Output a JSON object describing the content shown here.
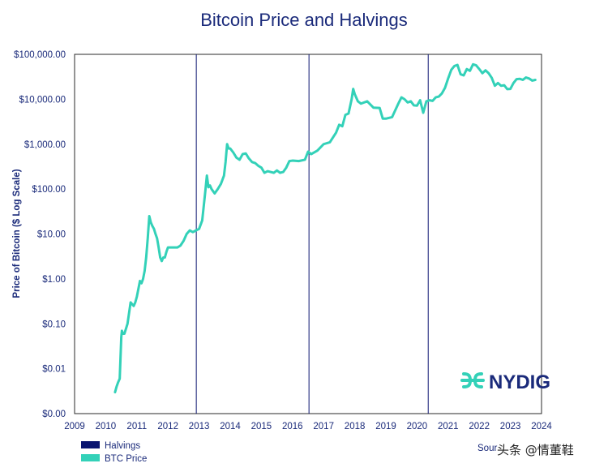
{
  "chart_data": {
    "type": "line",
    "title": "Bitcoin Price and Halvings",
    "ylabel": "Price of Bitcoin ($ Log Scale)",
    "xlabel": "",
    "y_scale": "log",
    "ylim": [
      0.001,
      100000
    ],
    "xlim": [
      2009,
      2024
    ],
    "x_ticks": [
      "2009",
      "2010",
      "2011",
      "2012",
      "2013",
      "2014",
      "2015",
      "2016",
      "2017",
      "2018",
      "2019",
      "2020",
      "2021",
      "2022",
      "2023",
      "2024"
    ],
    "y_ticks": [
      {
        "value": 0.001,
        "label": "$0.00"
      },
      {
        "value": 0.01,
        "label": "$0.01"
      },
      {
        "value": 0.1,
        "label": "$0.10"
      },
      {
        "value": 1,
        "label": "$1.00"
      },
      {
        "value": 10,
        "label": "$10.00"
      },
      {
        "value": 100,
        "label": "$100.00"
      },
      {
        "value": 1000,
        "label": "$1,000.00"
      },
      {
        "value": 10000,
        "label": "$10,000.00"
      },
      {
        "value": 100000,
        "label": "$100,000.00"
      }
    ],
    "grid": false,
    "series": [
      {
        "name": "BTC Price",
        "color": "#33d1b8",
        "x": [
          2010.3,
          2010.35,
          2010.4,
          2010.45,
          2010.5,
          2010.52,
          2010.55,
          2010.6,
          2010.7,
          2010.8,
          2010.9,
          2010.95,
          2011.0,
          2011.1,
          2011.15,
          2011.2,
          2011.25,
          2011.3,
          2011.35,
          2011.4,
          2011.45,
          2011.5,
          2011.55,
          2011.6,
          2011.65,
          2011.7,
          2011.75,
          2011.8,
          2011.85,
          2011.9,
          2011.95,
          2012.0,
          2012.1,
          2012.2,
          2012.3,
          2012.4,
          2012.5,
          2012.6,
          2012.7,
          2012.8,
          2012.9,
          2013.0,
          2013.1,
          2013.2,
          2013.25,
          2013.3,
          2013.35,
          2013.4,
          2013.5,
          2013.6,
          2013.7,
          2013.8,
          2013.85,
          2013.9,
          2013.95,
          2014.0,
          2014.1,
          2014.2,
          2014.3,
          2014.4,
          2014.5,
          2014.6,
          2014.7,
          2014.8,
          2014.9,
          2015.0,
          2015.1,
          2015.2,
          2015.3,
          2015.4,
          2015.5,
          2015.6,
          2015.7,
          2015.8,
          2015.9,
          2016.0,
          2016.2,
          2016.4,
          2016.5,
          2016.6,
          2016.8,
          2017.0,
          2017.2,
          2017.4,
          2017.5,
          2017.6,
          2017.7,
          2017.8,
          2017.9,
          2017.95,
          2018.0,
          2018.1,
          2018.2,
          2018.4,
          2018.6,
          2018.8,
          2018.9,
          2019.0,
          2019.2,
          2019.4,
          2019.5,
          2019.6,
          2019.7,
          2019.8,
          2019.9,
          2020.0,
          2020.1,
          2020.2,
          2020.3,
          2020.4,
          2020.5,
          2020.6,
          2020.7,
          2020.8,
          2020.9,
          2021.0,
          2021.1,
          2021.2,
          2021.3,
          2021.4,
          2021.5,
          2021.6,
          2021.7,
          2021.8,
          2021.9,
          2022.0,
          2022.1,
          2022.2,
          2022.3,
          2022.4,
          2022.5,
          2022.6,
          2022.7,
          2022.8,
          2022.9,
          2023.0,
          2023.1,
          2023.2,
          2023.3,
          2023.4,
          2023.5,
          2023.6,
          2023.7,
          2023.8
        ],
        "values": [
          0.003,
          0.004,
          0.005,
          0.006,
          0.05,
          0.07,
          0.06,
          0.06,
          0.1,
          0.3,
          0.25,
          0.3,
          0.4,
          0.9,
          0.8,
          1.0,
          1.5,
          3.0,
          8.0,
          25.0,
          18.0,
          15.0,
          13.0,
          10.0,
          8.0,
          5.0,
          3.0,
          2.5,
          3.0,
          3.0,
          4.0,
          5.0,
          5.0,
          5.0,
          5.0,
          5.5,
          7.0,
          10.0,
          12.0,
          11.0,
          12.0,
          13.0,
          20.0,
          90.0,
          200.0,
          110.0,
          120.0,
          100.0,
          80.0,
          100.0,
          130.0,
          200.0,
          400.0,
          1000.0,
          800.0,
          800.0,
          650.0,
          500.0,
          450.0,
          600.0,
          620.0,
          480.0,
          400.0,
          380.0,
          330.0,
          300.0,
          230.0,
          250.0,
          240.0,
          230.0,
          260.0,
          230.0,
          240.0,
          300.0,
          420.0,
          430.0,
          420.0,
          450.0,
          680.0,
          600.0,
          720.0,
          1000.0,
          1100.0,
          1800.0,
          2700.0,
          2500.0,
          4500.0,
          4800.0,
          10000.0,
          17000.0,
          13000.0,
          9000.0,
          8000.0,
          9000.0,
          6500.0,
          6400.0,
          3700.0,
          3700.0,
          4000.0,
          8000.0,
          11000.0,
          10000.0,
          8500.0,
          9000.0,
          7300.0,
          7200.0,
          9500.0,
          5000.0,
          9000.0,
          9500.0,
          9200.0,
          11000.0,
          11500.0,
          13500.0,
          18000.0,
          29000.0,
          45000.0,
          55000.0,
          58000.0,
          36000.0,
          34000.0,
          47000.0,
          43000.0,
          60000.0,
          57000.0,
          47000.0,
          38000.0,
          44000.0,
          38000.0,
          30000.0,
          20000.0,
          23000.0,
          20000.0,
          20500.0,
          16800.0,
          17000.0,
          23000.0,
          28000.0,
          28500.0,
          27000.0,
          30500.0,
          29000.0,
          26000.0,
          27000.0
        ]
      }
    ],
    "halvings": {
      "name": "Halvings",
      "color": "#0a1470",
      "x": [
        2012.91,
        2016.53,
        2020.36
      ]
    },
    "legend": {
      "position": "bottom-left",
      "entries": [
        {
          "label": "Halvings",
          "color": "#0a1470"
        },
        {
          "label": "BTC Price",
          "color": "#33d1b8"
        }
      ]
    }
  },
  "logo": {
    "text": "NYDIG",
    "color": "#33d1b8"
  },
  "source_text": "Sour",
  "watermark": "头条 @情董鞋"
}
